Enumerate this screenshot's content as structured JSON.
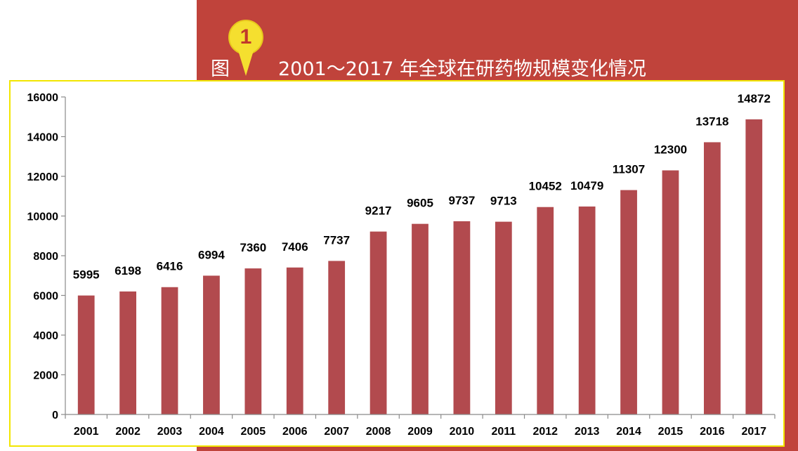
{
  "header": {
    "figure_prefix": "图",
    "figure_number": "1",
    "title": "2001～2017 年全球在研药物规模变化情况"
  },
  "colors": {
    "background_band": "#c0433b",
    "bar": "#b24a4e",
    "frame_border": "#f2e600",
    "badge": "#f5df2f",
    "badge_number": "#c0392b"
  },
  "chart_data": {
    "type": "bar",
    "categories": [
      "2001",
      "2002",
      "2003",
      "2004",
      "2005",
      "2006",
      "2007",
      "2008",
      "2009",
      "2010",
      "2011",
      "2012",
      "2013",
      "2014",
      "2015",
      "2016",
      "2017"
    ],
    "values": [
      5995,
      6198,
      6416,
      6994,
      7360,
      7406,
      7737,
      9217,
      9605,
      9737,
      9713,
      10452,
      10479,
      11307,
      12300,
      13718,
      14872
    ],
    "ylim": [
      0,
      16000
    ],
    "yticks": [
      0,
      2000,
      4000,
      6000,
      8000,
      10000,
      12000,
      14000,
      16000
    ],
    "xlabel": "",
    "ylabel": "",
    "data_labels": true,
    "grid": false,
    "legend": "none"
  }
}
